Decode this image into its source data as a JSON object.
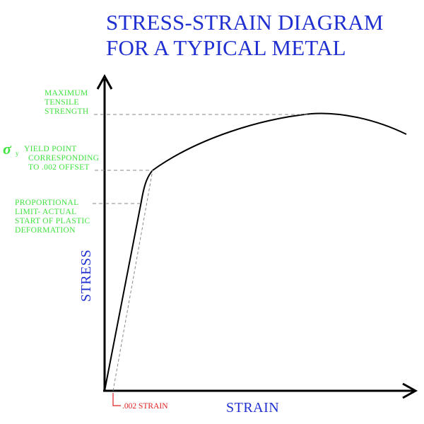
{
  "title": {
    "line1": "STRESS-STRAIN DIAGRAM",
    "line2": "FOR A TYPICAL METAL"
  },
  "axes": {
    "x_label": "STRAIN",
    "y_label": "STRESS"
  },
  "annotations": {
    "uts": [
      "MAXIMUM",
      "TENSILE",
      "STRENGTH"
    ],
    "yield": [
      "YIELD POINT",
      "CORRESPONDING",
      "TO .002 OFFSET"
    ],
    "yield_symbol": "σ",
    "yield_symbol_sub": "y",
    "proportional": [
      "PROPORTIONAL",
      "LIMIT- ACTUAL",
      "START OF PLASTIC",
      "DEFORMATION"
    ],
    "offset_label": ".002 STRAIN"
  },
  "colors": {
    "title": "#1f2fd0",
    "annotation": "#3ee23e",
    "offset": "#e02020",
    "curve": "#000000",
    "guide": "#888888"
  }
}
